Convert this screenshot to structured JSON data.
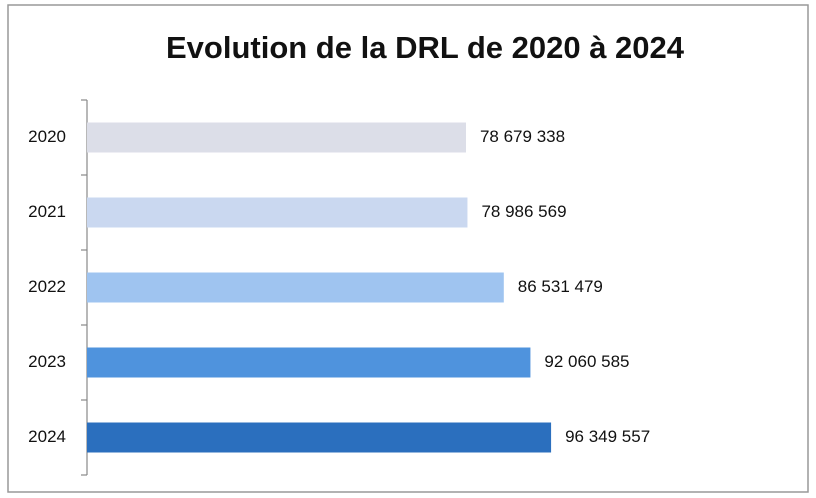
{
  "chart_data": {
    "type": "barh",
    "title": "Evolution de la DRL de 2020 à 2024",
    "categories": [
      "2020",
      "2021",
      "2022",
      "2023",
      "2024"
    ],
    "values": [
      78679338,
      78986569,
      86531479,
      92060585,
      96349557
    ],
    "value_labels": [
      "78 679 338",
      "78 986 569",
      "86 531 479",
      "92 060 585",
      "96 349 557"
    ],
    "colors": [
      "#dcdee8",
      "#cad8f0",
      "#9fc4f0",
      "#4f93dd",
      "#2b6fbe"
    ],
    "xlim": [
      0,
      120000000
    ]
  }
}
